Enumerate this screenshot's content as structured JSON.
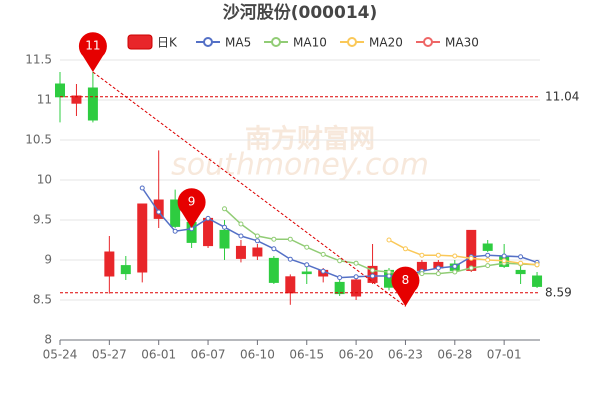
{
  "chart_data": {
    "type": "candlestick",
    "title": "沙河股份(000014)",
    "watermark": [
      "南方财富网",
      "southmoney.com"
    ],
    "categories": [
      "05-24",
      null,
      null,
      "05-27",
      null,
      null,
      "06-01",
      null,
      null,
      "06-07",
      null,
      null,
      "06-10",
      null,
      null,
      "06-15",
      null,
      null,
      "06-20",
      null,
      null,
      "06-23",
      null,
      null,
      "06-28",
      null,
      null,
      "07-01",
      null,
      null
    ],
    "candles": {
      "name": "日K",
      "up_color": "#e8262a",
      "down_color": "#2ecc40",
      "open": [
        11.2,
        10.96,
        11.15,
        8.8,
        8.93,
        8.85,
        9.52,
        9.75,
        9.47,
        9.18,
        9.37,
        9.02,
        9.05,
        9.02,
        8.59,
        8.85,
        8.8,
        8.72,
        8.55,
        8.72,
        8.87,
        8.6,
        8.87,
        8.9,
        8.95,
        8.87,
        9.2,
        9.05,
        8.87,
        8.8
      ],
      "close": [
        11.04,
        11.05,
        10.75,
        9.1,
        8.83,
        9.7,
        9.75,
        9.42,
        9.22,
        9.52,
        9.15,
        9.17,
        9.15,
        8.72,
        8.79,
        8.83,
        8.87,
        8.58,
        8.75,
        8.92,
        8.66,
        8.75,
        8.97,
        8.97,
        8.87,
        9.37,
        9.12,
        8.92,
        8.83,
        8.67
      ],
      "low": [
        10.72,
        10.8,
        10.72,
        8.58,
        8.75,
        8.72,
        9.4,
        9.4,
        9.15,
        9.15,
        9.0,
        8.97,
        9.0,
        8.7,
        8.44,
        8.7,
        8.72,
        8.55,
        8.5,
        8.7,
        8.62,
        8.42,
        8.82,
        8.85,
        8.85,
        8.85,
        9.1,
        8.9,
        8.7,
        8.65
      ],
      "high": [
        11.35,
        11.2,
        11.35,
        9.3,
        9.05,
        9.7,
        10.37,
        9.88,
        9.55,
        9.55,
        9.5,
        9.25,
        9.2,
        9.05,
        8.82,
        8.92,
        8.9,
        8.75,
        8.78,
        9.2,
        8.9,
        8.8,
        9.0,
        9.0,
        9.0,
        9.37,
        9.25,
        9.2,
        8.95,
        8.85
      ]
    },
    "series": [
      {
        "name": "MA5",
        "color": "#5470c6",
        "values": [
          null,
          null,
          null,
          null,
          null,
          9.9,
          9.6,
          9.36,
          9.39,
          9.52,
          9.41,
          9.3,
          9.24,
          9.14,
          9.01,
          8.94,
          8.86,
          8.78,
          8.79,
          8.8,
          8.8,
          8.81,
          8.86,
          8.9,
          8.92,
          9.04,
          9.06,
          9.05,
          9.04,
          8.97
        ]
      },
      {
        "name": "MA10",
        "color": "#91cc75",
        "values": [
          null,
          null,
          null,
          null,
          null,
          null,
          null,
          null,
          null,
          null,
          9.64,
          9.45,
          9.3,
          9.26,
          9.26,
          9.16,
          9.07,
          8.99,
          8.96,
          8.87,
          8.85,
          8.82,
          8.83,
          8.83,
          8.85,
          8.9,
          8.93,
          8.96,
          8.95,
          8.94
        ]
      },
      {
        "name": "MA20",
        "color": "#fac858",
        "values": [
          null,
          null,
          null,
          null,
          null,
          null,
          null,
          null,
          null,
          null,
          null,
          null,
          null,
          null,
          null,
          null,
          null,
          null,
          null,
          null,
          9.25,
          9.14,
          9.06,
          9.06,
          9.05,
          9.02,
          9.0,
          8.99,
          8.96,
          8.94
        ]
      },
      {
        "name": "MA30",
        "color": "#ee6666",
        "values": [
          null,
          null,
          null,
          null,
          null,
          null,
          null,
          null,
          null,
          null,
          null,
          null,
          null,
          null,
          null,
          null,
          null,
          null,
          null,
          null,
          null,
          null,
          null,
          null,
          null,
          null,
          null,
          null,
          null,
          null
        ]
      }
    ],
    "mark_points": [
      {
        "index": 2,
        "value": 11.35,
        "label": "11"
      },
      {
        "index": 8,
        "value": 9.4,
        "label": "9"
      },
      {
        "index": 21,
        "value": 8.42,
        "label": "8"
      }
    ],
    "mark_lines": [
      11.04,
      8.59
    ],
    "ylim": [
      8,
      11.5
    ],
    "yticks": [
      8,
      8.5,
      9,
      9.5,
      10,
      10.5,
      11,
      11.5
    ],
    "grid": true
  }
}
